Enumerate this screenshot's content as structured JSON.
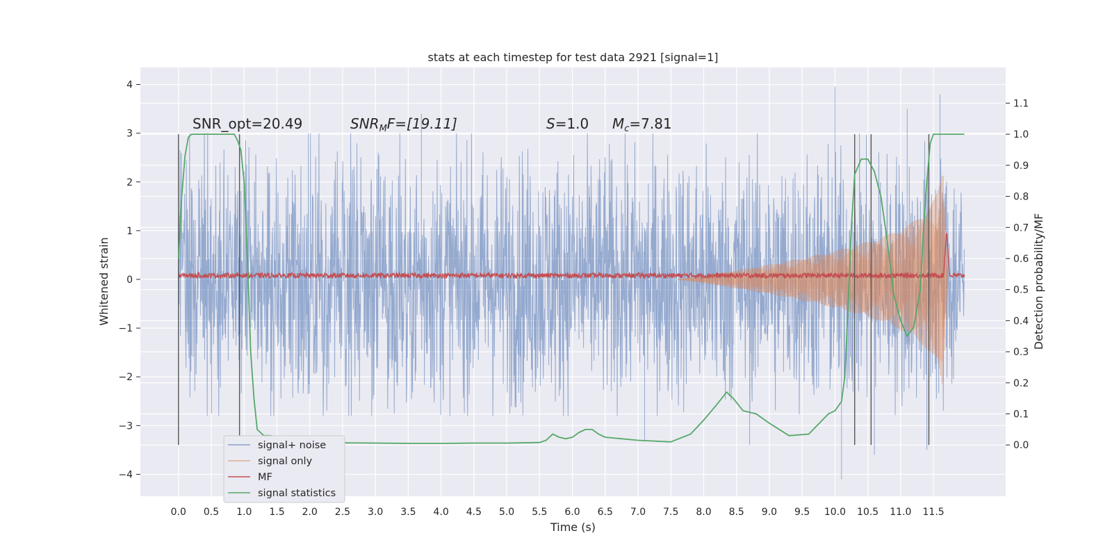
{
  "chart_data": {
    "type": "line",
    "title": "stats at each timestep for test data 2921 [signal=1]",
    "xlabel": "Time (s)",
    "ylabel": "Whitened strain",
    "y2label": "Detection probability/MF",
    "xlim": [
      -0.58,
      12.6
    ],
    "ylim": [
      -4.45,
      4.35
    ],
    "y2lim": [
      -0.165,
      1.215
    ],
    "grid": true,
    "legend_position": "lower-left",
    "x_ticks": [
      "0.0",
      "0.5",
      "1.0",
      "1.5",
      "2.0",
      "2.5",
      "3.0",
      "3.5",
      "4.0",
      "4.5",
      "5.0",
      "5.5",
      "6.0",
      "6.5",
      "7.0",
      "7.5",
      "8.0",
      "8.5",
      "9.0",
      "9.5",
      "10.0",
      "10.5",
      "11.0",
      "11.5"
    ],
    "y_ticks": [
      "−4",
      "−3",
      "−2",
      "−1",
      "0",
      "1",
      "2",
      "3",
      "4"
    ],
    "y2_ticks": [
      "0.0",
      "0.1",
      "0.2",
      "0.3",
      "0.4",
      "0.5",
      "0.6",
      "0.7",
      "0.8",
      "0.9",
      "1.0",
      "1.1"
    ],
    "annotations": {
      "snr_opt": "SNR_opt=20.49",
      "snr_mf_pre": "SNR",
      "snr_mf_sub": "M",
      "snr_mf_post": "F=[19.11]",
      "s_sym": "S",
      "s_val": "=1.0",
      "mc_sym": "M",
      "mc_sub": "c",
      "mc_val": "=7.81"
    },
    "vlines_x": [
      0.0,
      0.93,
      10.3,
      10.55,
      11.43
    ],
    "series": [
      {
        "name": "signal+ noise",
        "color": "#4c72b0",
        "noise_amp": 2.05,
        "x_range": [
          0.0,
          11.97
        ],
        "spikes": [
          [
            10.0,
            3.95
          ],
          [
            10.1,
            -4.1
          ],
          [
            11.6,
            3.8
          ],
          [
            8.7,
            -3.4
          ],
          [
            10.6,
            -3.6
          ],
          [
            11.4,
            -3.5
          ],
          [
            7.1,
            -3.3
          ],
          [
            11.1,
            3.5
          ],
          [
            3.7,
            3.4
          ]
        ]
      },
      {
        "name": "signal only",
        "color": "#dd8452",
        "envelope": {
          "x_start": 7.6,
          "x_peak": 11.65,
          "x_end": 11.72,
          "peak_amp": 2.2
        }
      },
      {
        "name": "MF",
        "color": "#c44e52",
        "baseline": 0.08,
        "jitter": 0.05,
        "peak": {
          "x": 11.7,
          "y": 1.0
        }
      },
      {
        "name": "signal statistics",
        "color": "#55a868",
        "x": [
          0.0,
          0.05,
          0.1,
          0.15,
          0.2,
          0.3,
          0.5,
          0.7,
          0.85,
          0.9,
          0.95,
          1.0,
          1.05,
          1.1,
          1.15,
          1.2,
          1.3,
          1.4,
          1.5,
          1.6,
          1.8,
          2.0,
          2.5,
          3.0,
          3.5,
          4.0,
          4.5,
          5.0,
          5.5,
          5.6,
          5.7,
          5.8,
          5.9,
          6.0,
          6.1,
          6.2,
          6.3,
          6.4,
          6.5,
          7.0,
          7.5,
          7.8,
          8.0,
          8.2,
          8.35,
          8.45,
          8.6,
          8.8,
          9.0,
          9.3,
          9.6,
          9.9,
          10.0,
          10.1,
          10.15,
          10.2,
          10.25,
          10.3,
          10.4,
          10.5,
          10.6,
          10.7,
          10.8,
          10.9,
          11.0,
          11.1,
          11.2,
          11.3,
          11.35,
          11.4,
          11.45,
          11.5,
          11.6,
          11.7,
          11.8,
          11.9,
          11.97
        ],
        "y": [
          0.6,
          0.8,
          0.93,
          0.99,
          1.0,
          1.0,
          1.0,
          1.0,
          1.0,
          0.98,
          0.95,
          0.85,
          0.6,
          0.3,
          0.15,
          0.05,
          0.03,
          0.03,
          0.025,
          0.015,
          0.007,
          0.005,
          0.007,
          0.006,
          0.005,
          0.005,
          0.006,
          0.006,
          0.008,
          0.015,
          0.035,
          0.025,
          0.02,
          0.025,
          0.04,
          0.05,
          0.05,
          0.035,
          0.025,
          0.015,
          0.01,
          0.035,
          0.08,
          0.13,
          0.17,
          0.15,
          0.11,
          0.1,
          0.07,
          0.03,
          0.035,
          0.1,
          0.11,
          0.14,
          0.22,
          0.45,
          0.7,
          0.87,
          0.92,
          0.92,
          0.88,
          0.8,
          0.65,
          0.48,
          0.4,
          0.35,
          0.38,
          0.5,
          0.7,
          0.85,
          0.97,
          1.0,
          1.0,
          1.0,
          1.0,
          1.0,
          1.0
        ]
      }
    ]
  }
}
